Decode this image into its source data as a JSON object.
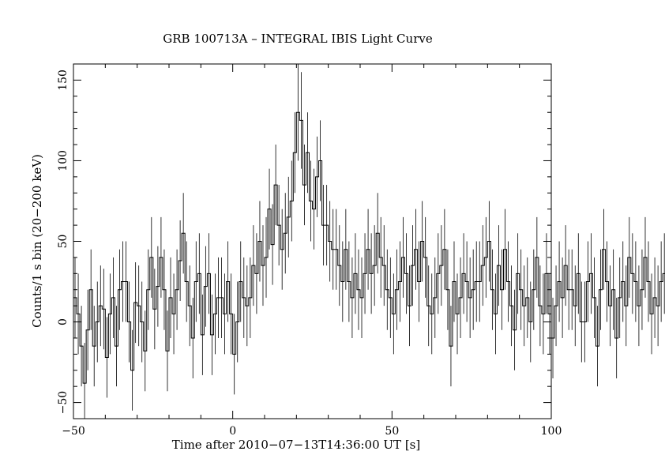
{
  "chart_data": {
    "type": "line",
    "style": "step-with-error-bars",
    "title": "GRB 100713A – INTEGRAL IBIS Light Curve",
    "xlabel": "Time after 2010−07−13T14:36:00 UT [s]",
    "ylabel": "Counts/1 s bin (20−200 keV)",
    "xlim": [
      -50,
      100
    ],
    "ylim": [
      -60,
      160
    ],
    "xticks": [
      -50,
      0,
      50,
      100
    ],
    "xtick_labels": [
      "−50",
      "0",
      "50",
      "100"
    ],
    "yticks": [
      -50,
      0,
      50,
      100,
      150
    ],
    "ytick_labels": [
      "−50",
      "0",
      "50",
      "100",
      "150"
    ],
    "grid": false,
    "legend": "none",
    "line_color": "#000000",
    "bin_width": 1,
    "x_start": -50,
    "counts": [
      15,
      5,
      -15,
      -38,
      -5,
      20,
      -15,
      0,
      10,
      8,
      -22,
      5,
      15,
      -15,
      20,
      25,
      25,
      0,
      -30,
      12,
      10,
      0,
      -18,
      20,
      40,
      8,
      22,
      40,
      20,
      -18,
      15,
      5,
      20,
      38,
      55,
      25,
      10,
      -10,
      25,
      30,
      -8,
      22,
      30,
      -8,
      5,
      15,
      15,
      5,
      25,
      5,
      -20,
      0,
      25,
      15,
      10,
      15,
      35,
      30,
      50,
      35,
      40,
      70,
      48,
      85,
      60,
      45,
      55,
      65,
      75,
      105,
      130,
      125,
      85,
      105,
      75,
      70,
      90,
      100,
      60,
      60,
      50,
      45,
      45,
      35,
      25,
      45,
      25,
      15,
      30,
      20,
      15,
      30,
      45,
      30,
      35,
      55,
      40,
      35,
      20,
      15,
      5,
      20,
      25,
      40,
      30,
      10,
      35,
      45,
      25,
      50,
      40,
      10,
      5,
      15,
      30,
      35,
      45,
      20,
      -15,
      25,
      5,
      15,
      30,
      25,
      15,
      20,
      25,
      25,
      35,
      40,
      50,
      20,
      5,
      35,
      20,
      45,
      25,
      10,
      -5,
      30,
      20,
      10,
      15,
      0,
      20,
      40,
      10,
      5,
      30,
      5,
      -10,
      10,
      25,
      15,
      35,
      20,
      20,
      10,
      30,
      0,
      0,
      25,
      30,
      15,
      -15,
      20,
      45,
      25,
      10,
      20,
      -10,
      15,
      25,
      10,
      40,
      30,
      25,
      10,
      20,
      40,
      25,
      5,
      15,
      10,
      25,
      30,
      15,
      5,
      -15,
      10,
      5,
      20,
      35,
      30,
      15,
      10,
      30,
      5,
      5,
      25,
      40,
      20,
      25,
      15,
      -20,
      10,
      10,
      20,
      15,
      -5,
      20,
      30,
      5,
      15,
      25,
      40,
      30,
      25,
      10,
      0,
      20,
      25,
      35,
      20,
      -10,
      0,
      -15,
      15,
      25,
      30,
      50,
      25,
      40,
      55
    ],
    "errors": [
      25,
      25,
      25,
      25,
      25,
      25,
      25,
      25,
      25,
      25,
      25,
      25,
      25,
      25,
      25,
      25,
      25,
      25,
      25,
      25,
      25,
      25,
      25,
      25,
      25,
      25,
      25,
      25,
      25,
      25,
      25,
      25,
      25,
      25,
      25,
      25,
      25,
      25,
      25,
      25,
      25,
      25,
      25,
      25,
      25,
      25,
      25,
      25,
      25,
      25,
      25,
      25,
      25,
      25,
      25,
      25,
      25,
      25,
      25,
      25,
      25,
      25,
      25,
      25,
      25,
      25,
      25,
      25,
      25,
      25,
      30,
      30,
      25,
      25,
      25,
      25,
      25,
      25,
      25,
      25,
      25,
      25,
      25,
      25,
      25,
      25,
      25,
      25,
      25,
      25,
      25,
      25,
      25,
      25,
      25,
      25,
      25,
      25,
      25,
      25,
      25,
      25,
      25,
      25,
      25,
      25,
      25,
      25,
      25,
      25,
      25,
      25,
      25,
      25,
      25,
      25,
      25,
      25,
      25,
      25,
      25,
      25,
      25,
      25,
      25,
      25,
      25,
      25,
      25,
      25,
      25,
      25,
      25,
      25,
      25,
      25,
      25,
      25,
      25,
      25,
      25,
      25,
      25,
      25,
      25,
      25,
      25,
      25,
      25,
      25,
      25,
      25,
      25,
      25,
      25,
      25,
      25,
      25,
      25,
      25,
      25,
      25,
      25,
      25,
      25,
      25,
      25,
      25,
      25,
      25,
      25,
      25,
      25,
      25,
      25,
      25,
      25,
      25,
      25,
      25,
      25,
      25,
      25,
      25,
      25,
      25,
      25,
      25,
      25,
      25,
      25,
      25,
      25,
      25,
      25,
      25,
      25,
      25,
      25,
      25,
      25,
      25,
      25,
      25,
      25,
      25,
      25,
      25,
      25,
      25,
      25,
      25,
      25,
      25,
      25,
      25,
      25,
      25,
      25,
      25,
      25,
      25,
      25,
      25,
      25,
      25,
      25,
      25,
      25,
      25,
      30,
      25,
      25,
      30
    ]
  }
}
